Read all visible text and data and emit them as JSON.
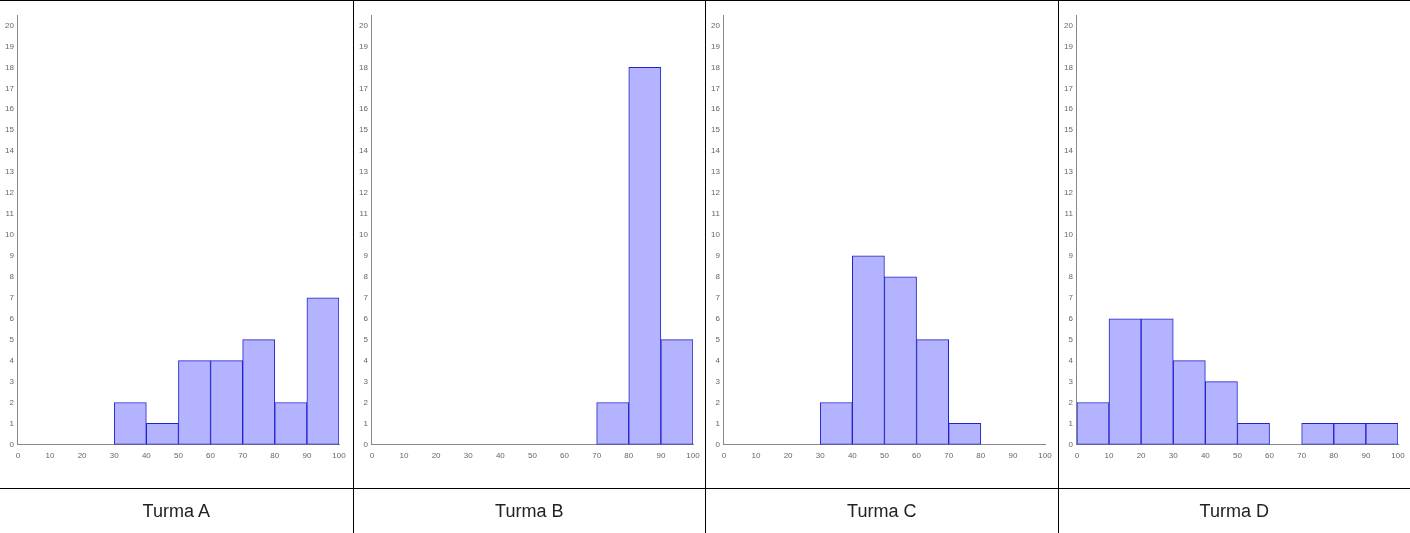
{
  "chart_data": [
    {
      "type": "histogram",
      "title": "Turma A",
      "bins": [
        0,
        10,
        20,
        30,
        40,
        50,
        60,
        70,
        80,
        90,
        100
      ],
      "values": [
        0,
        0,
        0,
        2,
        1,
        4,
        4,
        5,
        2,
        7
      ],
      "color": "#b3b3ff",
      "xlim": [
        0,
        100
      ],
      "xticks": [
        0,
        10,
        20,
        30,
        40,
        50,
        60,
        70,
        80,
        90,
        100
      ],
      "ylim": [
        0,
        20.5
      ],
      "yticks": [
        0,
        1,
        2,
        3,
        4,
        5,
        6,
        7,
        8,
        9,
        10,
        11,
        12,
        13,
        14,
        15,
        16,
        17,
        18,
        19,
        20
      ]
    },
    {
      "type": "histogram",
      "title": "Turma B",
      "bins": [
        0,
        10,
        20,
        30,
        40,
        50,
        60,
        70,
        80,
        90,
        100
      ],
      "values": [
        0,
        0,
        0,
        0,
        0,
        0,
        0,
        2,
        18,
        5
      ],
      "color": "#b3b3ff",
      "xlim": [
        0,
        100
      ],
      "xticks": [
        0,
        10,
        20,
        30,
        40,
        50,
        60,
        70,
        80,
        90,
        100
      ],
      "ylim": [
        0,
        20.5
      ],
      "yticks": [
        0,
        1,
        2,
        3,
        4,
        5,
        6,
        7,
        8,
        9,
        10,
        11,
        12,
        13,
        14,
        15,
        16,
        17,
        18,
        19,
        20
      ]
    },
    {
      "type": "histogram",
      "title": "Turma C",
      "bins": [
        0,
        10,
        20,
        30,
        40,
        50,
        60,
        70,
        80,
        90,
        100
      ],
      "values": [
        0,
        0,
        0,
        2,
        9,
        8,
        5,
        1,
        0,
        0
      ],
      "color": "#b3b3ff",
      "xlim": [
        0,
        100
      ],
      "xticks": [
        0,
        10,
        20,
        30,
        40,
        50,
        60,
        70,
        80,
        90,
        100
      ],
      "ylim": [
        0,
        20.5
      ],
      "yticks": [
        0,
        1,
        2,
        3,
        4,
        5,
        6,
        7,
        8,
        9,
        10,
        11,
        12,
        13,
        14,
        15,
        16,
        17,
        18,
        19,
        20
      ]
    },
    {
      "type": "histogram",
      "title": "Turma D",
      "bins": [
        0,
        10,
        20,
        30,
        40,
        50,
        60,
        70,
        80,
        90,
        100
      ],
      "values": [
        2,
        6,
        6,
        4,
        3,
        1,
        0,
        1,
        1,
        1
      ],
      "color": "#b3b3ff",
      "xlim": [
        0,
        100
      ],
      "xticks": [
        0,
        10,
        20,
        30,
        40,
        50,
        60,
        70,
        80,
        90,
        100
      ],
      "ylim": [
        0,
        20.5
      ],
      "yticks": [
        0,
        1,
        2,
        3,
        4,
        5,
        6,
        7,
        8,
        9,
        10,
        11,
        12,
        13,
        14,
        15,
        16,
        17,
        18,
        19,
        20
      ]
    }
  ]
}
